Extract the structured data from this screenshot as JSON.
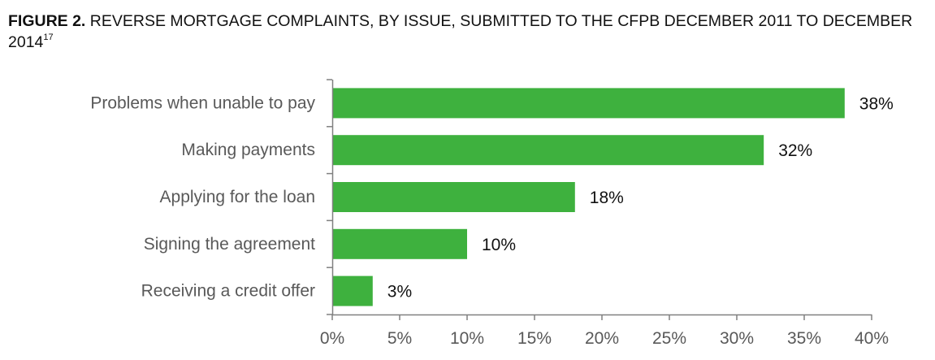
{
  "figure": {
    "label": "FIGURE 2.",
    "title": "REVERSE MORTGAGE COMPLAINTS, BY ISSUE, SUBMITTED TO THE CFPB DECEMBER 2011 TO DECEMBER 2014",
    "footnote": "17"
  },
  "chart_data": {
    "type": "bar",
    "orientation": "horizontal",
    "categories": [
      "Problems when unable to pay",
      "Making payments",
      "Applying for the loan",
      "Signing the agreement",
      "Receiving a credit offer"
    ],
    "values": [
      38,
      32,
      18,
      10,
      3
    ],
    "value_labels": [
      "38%",
      "32%",
      "18%",
      "10%",
      "3%"
    ],
    "xlim": [
      0,
      40
    ],
    "xticks": [
      0,
      5,
      10,
      15,
      20,
      25,
      30,
      35,
      40
    ],
    "xtick_labels": [
      "0%",
      "5%",
      "10%",
      "15%",
      "20%",
      "25%",
      "30%",
      "35%",
      "40%"
    ],
    "xlabel": "",
    "ylabel": "",
    "grid": false,
    "legend": "none",
    "bar_color": "#3EB13E",
    "axis_color": "#808080"
  }
}
